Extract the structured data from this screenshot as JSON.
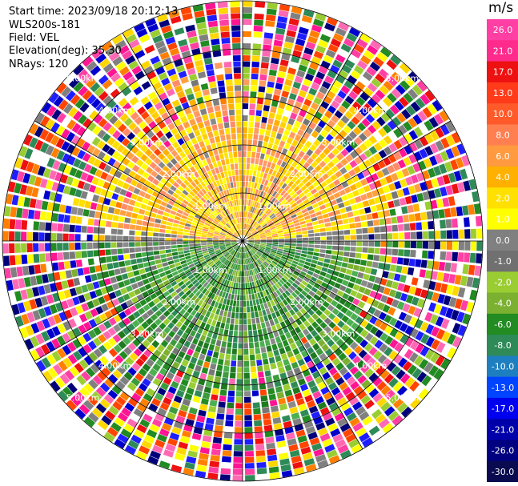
{
  "header": {
    "start_time": "Start time: 2023/09/18 20:12:13",
    "instrument": "WLS200s-181",
    "field": "Field: VEL",
    "elevation": "Elevation(deg): 35.30",
    "nrays": "NRays: 120"
  },
  "colorbar": {
    "unit": "m/s",
    "ticks": [
      "26.0",
      "21.0",
      "17.0",
      "13.0",
      "10.0",
      "8.0",
      "6.0",
      "4.0",
      "2.0",
      "1.0",
      "0.0",
      "-1.0",
      "-2.0",
      "-4.0",
      "-6.0",
      "-8.0",
      "-10.0",
      "-13.0",
      "-17.0",
      "-21.0",
      "-26.0",
      "-30.0"
    ],
    "colors": [
      "#ff3fa3",
      "#ff2b8c",
      "#ee1111",
      "#ff3b1a",
      "#ff5a2a",
      "#ff7f50",
      "#ff9a40",
      "#ffb000",
      "#ffe000",
      "#ffff00",
      "#808080",
      "#707070",
      "#9acd32",
      "#7cb030",
      "#228b22",
      "#2e8b57",
      "#1e7fc0",
      "#0044ff",
      "#0000ee",
      "#0000aa",
      "#000080",
      "#0a0a50"
    ]
  },
  "chart_data": {
    "type": "heatmap",
    "projection": "polar-ppi",
    "field": "VEL",
    "nrays": 120,
    "range_ring_labels": [
      "1.00km",
      "2.00km",
      "3.00km",
      "4.00km",
      "5.00km"
    ],
    "range_rings_km": [
      1,
      2,
      3,
      4,
      5
    ],
    "max_range_km": 5,
    "value_range": [
      -30.0,
      26.0
    ],
    "pattern": {
      "north_half_near": "positive velocities (yellow/orange, 1 to 8 m/s)",
      "south_half_near": "negative velocities (green, -2 to -8 m/s)",
      "far_range": "noisy mixed colors"
    }
  }
}
